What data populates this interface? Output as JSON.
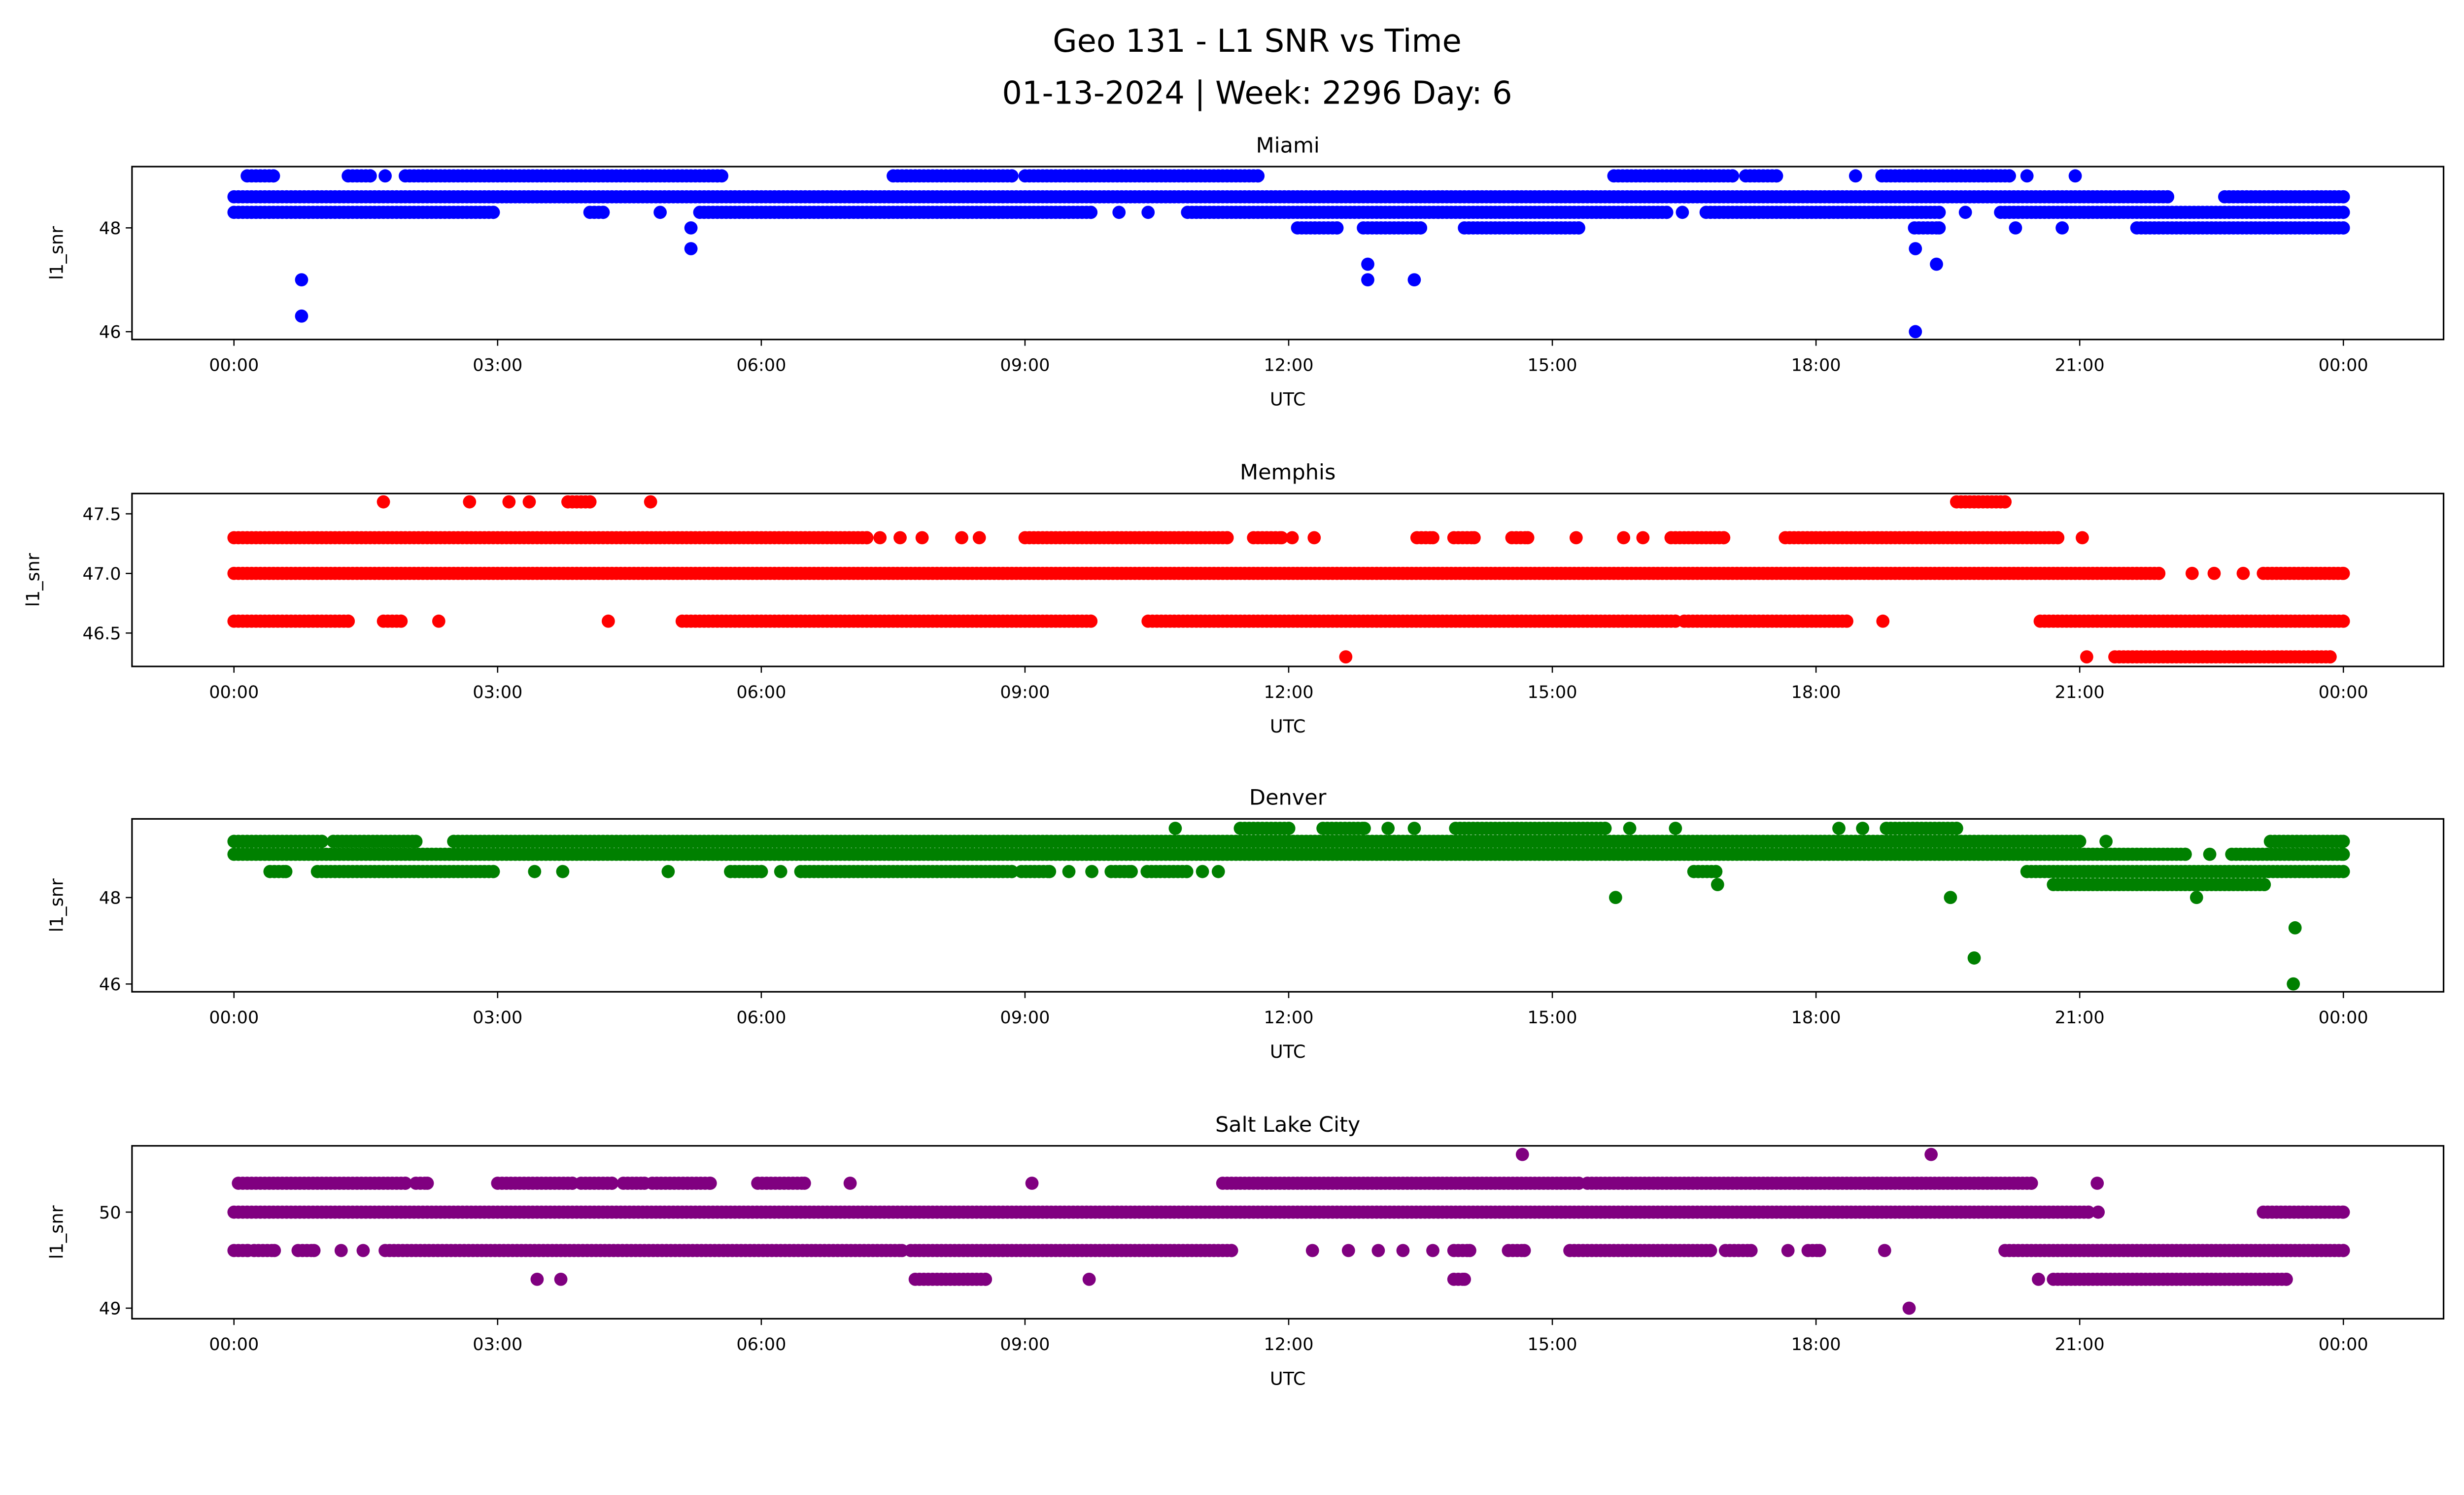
{
  "title_line1": "Geo 131 - L1 SNR vs Time",
  "title_line2": "01-13-2024 | Week: 2296 Day: 6",
  "chart_data": [
    {
      "type": "scatter",
      "title": "Miami",
      "color": "#0000ff",
      "xlabel": "UTC",
      "ylabel": "l1_snr",
      "xlim_hours": [
        -1.16,
        25.14
      ],
      "ylim": [
        45.85,
        49.18
      ],
      "xticks_hours": [
        0,
        3,
        6,
        9,
        12,
        15,
        18,
        21,
        24
      ],
      "xtick_labels": [
        "00:00",
        "03:00",
        "06:00",
        "09:00",
        "12:00",
        "15:00",
        "18:00",
        "21:00",
        "00:00"
      ],
      "yticks": [
        46,
        48
      ],
      "ytick_labels": [
        "46",
        "48"
      ],
      "levels": [
        {
          "y": 49.0,
          "ranges": [
            [
              0.15,
              0.45
            ],
            [
              1.3,
              1.55
            ],
            [
              1.72
            ],
            [
              1.95,
              5.5
            ],
            [
              5.55
            ],
            [
              7.5,
              8.85
            ],
            [
              9.0,
              11.65
            ],
            [
              15.7,
              17.05
            ],
            [
              17.2,
              17.55
            ],
            [
              18.45
            ],
            [
              18.75,
              20.2
            ],
            [
              20.4
            ],
            [
              20.95
            ]
          ]
        },
        {
          "y": 48.6,
          "ranges": [
            [
              0,
              22.0
            ],
            [
              22.65,
              24
            ]
          ]
        },
        {
          "y": 48.3,
          "ranges": [
            [
              0,
              2.95
            ],
            [
              4.05,
              4.2
            ],
            [
              4.85
            ],
            [
              5.3,
              9.75
            ],
            [
              10.07
            ],
            [
              10.4
            ],
            [
              10.85,
              16.3
            ],
            [
              16.48
            ],
            [
              16.75,
              19.4
            ],
            [
              19.7
            ],
            [
              20.1,
              24
            ]
          ]
        },
        {
          "y": 48.0,
          "ranges": [
            [
              12.1,
              12.55
            ],
            [
              12.85,
              13.5
            ],
            [
              14.0,
              15.3
            ],
            [
              19.12,
              19.4
            ],
            [
              20.27
            ],
            [
              20.8
            ],
            [
              21.65,
              24
            ]
          ]
        }
      ],
      "outliers": [
        [
          5.2,
          48.0
        ],
        [
          5.2,
          47.6
        ],
        [
          19.13,
          47.6
        ],
        [
          12.9,
          47.3
        ],
        [
          19.37,
          47.3
        ],
        [
          0.77,
          47.0
        ],
        [
          12.9,
          47.0
        ],
        [
          13.43,
          47.0
        ],
        [
          0.77,
          46.3
        ],
        [
          19.13,
          46.0
        ]
      ]
    },
    {
      "type": "scatter",
      "title": "Memphis",
      "color": "#ff0000",
      "xlabel": "UTC",
      "ylabel": "l1_snr",
      "xlim_hours": [
        -1.16,
        25.14
      ],
      "ylim": [
        46.22,
        47.67
      ],
      "xticks_hours": [
        0,
        3,
        6,
        9,
        12,
        15,
        18,
        21,
        24
      ],
      "xtick_labels": [
        "00:00",
        "03:00",
        "06:00",
        "09:00",
        "12:00",
        "15:00",
        "18:00",
        "21:00",
        "00:00"
      ],
      "yticks": [
        46.5,
        47.0,
        47.5
      ],
      "ytick_labels": [
        "46.5",
        "47.0",
        "47.5"
      ],
      "levels": [
        {
          "y": 47.6,
          "ranges": [
            [
              1.7
            ],
            [
              2.68
            ],
            [
              3.13
            ],
            [
              3.36
            ],
            [
              3.8,
              4.05
            ],
            [
              4.74
            ],
            [
              19.6,
              20.15
            ]
          ]
        },
        {
          "y": 47.3,
          "ranges": [
            [
              0,
              7.2
            ],
            [
              7.35
            ],
            [
              7.58
            ],
            [
              7.83
            ],
            [
              8.28
            ],
            [
              8.48
            ],
            [
              9.0,
              11.3
            ],
            [
              11.6,
              11.92
            ],
            [
              12.04
            ],
            [
              12.29
            ],
            [
              13.46,
              13.64
            ],
            [
              13.88,
              14.11
            ],
            [
              14.54,
              14.72
            ],
            [
              15.27
            ],
            [
              15.81
            ],
            [
              16.03
            ],
            [
              16.35,
              16.95
            ],
            [
              17.65,
              20.75
            ],
            [
              21.03
            ]
          ]
        },
        {
          "y": 47.0,
          "ranges": [
            [
              0,
              21.9
            ],
            [
              22.28
            ],
            [
              22.53
            ],
            [
              22.86
            ],
            [
              23.09,
              24
            ]
          ]
        },
        {
          "y": 46.6,
          "ranges": [
            [
              0,
              1.3
            ],
            [
              1.7,
              1.9
            ],
            [
              2.33
            ],
            [
              4.26
            ],
            [
              5.1,
              9.75
            ],
            [
              10.4,
              16.4
            ],
            [
              16.5,
              18.35
            ],
            [
              18.76
            ],
            [
              20.55,
              24
            ]
          ]
        },
        {
          "y": 46.3,
          "ranges": [
            [
              12.65
            ],
            [
              21.08
            ],
            [
              21.4,
              23.85
            ]
          ]
        }
      ],
      "outliers": []
    },
    {
      "type": "scatter",
      "title": "Denver",
      "color": "#008000",
      "xlabel": "UTC",
      "ylabel": "l1_snr",
      "xlim_hours": [
        -1.16,
        25.14
      ],
      "ylim": [
        45.82,
        49.82
      ],
      "xticks_hours": [
        0,
        3,
        6,
        9,
        12,
        15,
        18,
        21,
        24
      ],
      "xtick_labels": [
        "00:00",
        "03:00",
        "06:00",
        "09:00",
        "12:00",
        "15:00",
        "18:00",
        "21:00",
        "00:00"
      ],
      "yticks": [
        46,
        48
      ],
      "ytick_labels": [
        "46",
        "48"
      ],
      "levels": [
        {
          "y": 49.6,
          "ranges": [
            [
              10.71
            ],
            [
              11.45,
              12.0
            ],
            [
              12.39,
              12.86
            ],
            [
              13.13
            ],
            [
              13.43
            ],
            [
              13.9,
              15.6
            ],
            [
              15.88
            ],
            [
              16.4
            ],
            [
              18.26
            ],
            [
              18.53
            ],
            [
              18.8,
              19.6
            ]
          ]
        },
        {
          "y": 49.3,
          "ranges": [
            [
              0,
              1.0
            ],
            [
              1.13,
              2.07
            ],
            [
              2.5,
              21.0
            ],
            [
              21.3
            ],
            [
              23.17,
              24
            ]
          ]
        },
        {
          "y": 49.0,
          "ranges": [
            [
              0,
              22.2
            ],
            [
              22.48
            ],
            [
              22.73,
              24
            ]
          ]
        },
        {
          "y": 48.6,
          "ranges": [
            [
              0.41,
              0.59
            ],
            [
              0.95,
              2.95
            ],
            [
              3.42
            ],
            [
              3.74
            ],
            [
              4.94
            ],
            [
              5.65,
              6.0
            ],
            [
              6.22
            ],
            [
              6.45,
              8.85
            ],
            [
              8.96,
              9.28
            ],
            [
              9.5
            ],
            [
              9.76
            ],
            [
              9.98,
              10.21
            ],
            [
              10.39,
              10.84
            ],
            [
              11.02
            ],
            [
              11.2
            ],
            [
              16.61,
              16.86
            ],
            [
              20.4,
              24
            ]
          ]
        },
        {
          "y": 48.3,
          "ranges": [
            [
              16.88
            ],
            [
              20.7,
              23.1
            ]
          ]
        },
        {
          "y": 48.0,
          "ranges": [
            [
              15.72
            ],
            [
              19.53
            ],
            [
              22.33
            ]
          ]
        }
      ],
      "outliers": [
        [
          23.45,
          47.3
        ],
        [
          19.8,
          46.6
        ],
        [
          23.43,
          46.0
        ]
      ]
    },
    {
      "type": "scatter",
      "title": "Salt Lake City",
      "color": "#800080",
      "xlabel": "UTC",
      "ylabel": "l1_snr",
      "xlim_hours": [
        -1.16,
        25.14
      ],
      "ylim": [
        48.89,
        50.69
      ],
      "xticks_hours": [
        0,
        3,
        6,
        9,
        12,
        15,
        18,
        21,
        24
      ],
      "xtick_labels": [
        "00:00",
        "03:00",
        "06:00",
        "09:00",
        "12:00",
        "15:00",
        "18:00",
        "21:00",
        "00:00"
      ],
      "yticks": [
        49,
        50
      ],
      "ytick_labels": [
        "49",
        "50"
      ],
      "levels": [
        {
          "y": 50.6,
          "ranges": [
            [
              14.66
            ],
            [
              19.31
            ]
          ]
        },
        {
          "y": 50.3,
          "ranges": [
            [
              0.05,
              1.95
            ],
            [
              2.07,
              2.2
            ],
            [
              3.0,
              3.85
            ],
            [
              3.95,
              4.3
            ],
            [
              4.43,
              4.67
            ],
            [
              4.76,
              5.42
            ],
            [
              5.96,
              6.49
            ],
            [
              7.01
            ],
            [
              9.08
            ],
            [
              11.25,
              15.3
            ],
            [
              15.4,
              20.45
            ],
            [
              21.2
            ]
          ]
        },
        {
          "y": 50.0,
          "ranges": [
            [
              0,
              21.1
            ],
            [
              21.21
            ],
            [
              23.09,
              24
            ]
          ]
        },
        {
          "y": 49.6,
          "ranges": [
            [
              0,
              0.16
            ],
            [
              0.23,
              0.46
            ],
            [
              0.73,
              0.91
            ],
            [
              1.22
            ],
            [
              1.47
            ],
            [
              1.72,
              7.6
            ],
            [
              7.7,
              11.35
            ],
            [
              12.27
            ],
            [
              12.68
            ],
            [
              13.02
            ],
            [
              13.3
            ],
            [
              13.64
            ],
            [
              13.88,
              14.06
            ],
            [
              14.5,
              14.68
            ],
            [
              15.2,
              16.8
            ],
            [
              16.97,
              17.26
            ],
            [
              17.68
            ],
            [
              17.91,
              18.04
            ],
            [
              18.78
            ],
            [
              20.15,
              24
            ]
          ]
        },
        {
          "y": 49.3,
          "ranges": [
            [
              3.45
            ],
            [
              3.72
            ],
            [
              7.75,
              8.55
            ],
            [
              9.73
            ],
            [
              13.88,
              14.0
            ],
            [
              20.53
            ],
            [
              20.7,
              23.35
            ]
          ]
        },
        {
          "y": 49.0,
          "ranges": [
            [
              19.06
            ]
          ]
        }
      ],
      "outliers": []
    }
  ]
}
